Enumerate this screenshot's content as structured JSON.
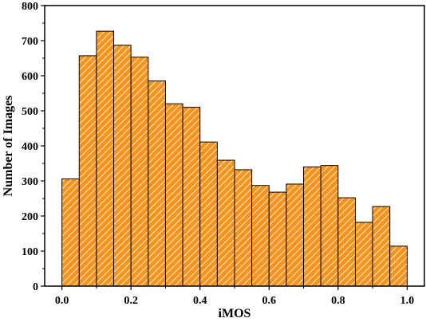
{
  "chart_data": {
    "type": "bar",
    "title": "",
    "xlabel": "iMOS",
    "ylabel": "Number of Images",
    "xlim": [
      -0.05,
      1.05
    ],
    "ylim": [
      0,
      800
    ],
    "xticks": [
      0.0,
      0.2,
      0.4,
      0.6,
      0.8,
      1.0
    ],
    "xtick_labels": [
      "0.0",
      "0.2",
      "0.4",
      "0.6",
      "0.8",
      "1.0"
    ],
    "yticks": [
      0,
      100,
      200,
      300,
      400,
      500,
      600,
      700,
      800
    ],
    "ytick_labels": [
      "0",
      "100",
      "200",
      "300",
      "400",
      "500",
      "600",
      "700",
      "800"
    ],
    "bin_width": 0.05,
    "bins": [
      {
        "start": 0.0,
        "end": 0.05,
        "value": 306
      },
      {
        "start": 0.05,
        "end": 0.1,
        "value": 657
      },
      {
        "start": 0.1,
        "end": 0.15,
        "value": 727
      },
      {
        "start": 0.15,
        "end": 0.2,
        "value": 687
      },
      {
        "start": 0.2,
        "end": 0.25,
        "value": 653
      },
      {
        "start": 0.25,
        "end": 0.3,
        "value": 585
      },
      {
        "start": 0.3,
        "end": 0.35,
        "value": 520
      },
      {
        "start": 0.35,
        "end": 0.4,
        "value": 510
      },
      {
        "start": 0.4,
        "end": 0.45,
        "value": 411
      },
      {
        "start": 0.45,
        "end": 0.5,
        "value": 359
      },
      {
        "start": 0.5,
        "end": 0.55,
        "value": 332
      },
      {
        "start": 0.55,
        "end": 0.6,
        "value": 287
      },
      {
        "start": 0.6,
        "end": 0.65,
        "value": 268
      },
      {
        "start": 0.65,
        "end": 0.7,
        "value": 291
      },
      {
        "start": 0.7,
        "end": 0.75,
        "value": 340
      },
      {
        "start": 0.75,
        "end": 0.8,
        "value": 344
      },
      {
        "start": 0.8,
        "end": 0.85,
        "value": 252
      },
      {
        "start": 0.85,
        "end": 0.9,
        "value": 182
      },
      {
        "start": 0.9,
        "end": 0.95,
        "value": 227
      },
      {
        "start": 0.95,
        "end": 1.0,
        "value": 114
      }
    ],
    "bar_color": "#F7941D",
    "hatch_color": "#ffffff",
    "edge_color": "#000000",
    "grid": false,
    "legend": "none"
  }
}
